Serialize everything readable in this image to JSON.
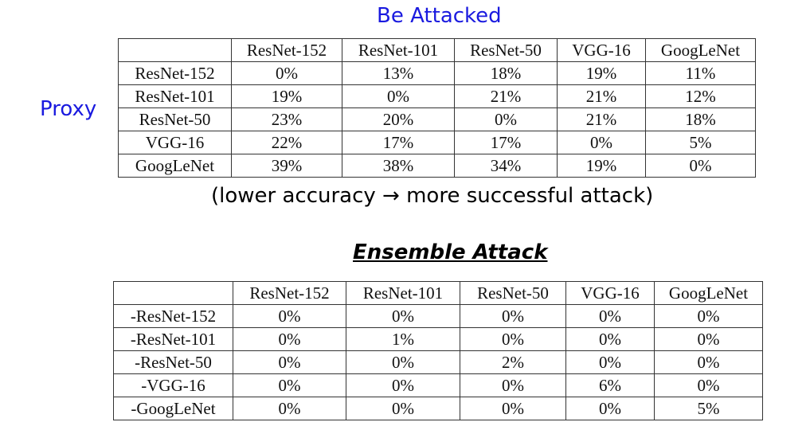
{
  "labels": {
    "be_attacked": "Be Attacked",
    "proxy": "Proxy",
    "note": "(lower accuracy → more successful attack)",
    "ensemble_title": "Ensemble Attack"
  },
  "colors": {
    "heading_blue": "#1a1adf"
  },
  "top_table": {
    "headers": [
      "",
      "ResNet-152",
      "ResNet-101",
      "ResNet-50",
      "VGG-16",
      "GoogLeNet"
    ],
    "rows": [
      [
        "ResNet-152",
        "0%",
        "13%",
        "18%",
        "19%",
        "11%"
      ],
      [
        "ResNet-101",
        "19%",
        "0%",
        "21%",
        "21%",
        "12%"
      ],
      [
        "ResNet-50",
        "23%",
        "20%",
        "0%",
        "21%",
        "18%"
      ],
      [
        "VGG-16",
        "22%",
        "17%",
        "17%",
        "0%",
        "5%"
      ],
      [
        "GoogLeNet",
        "39%",
        "38%",
        "34%",
        "19%",
        "0%"
      ]
    ]
  },
  "bottom_table": {
    "headers": [
      "",
      "ResNet-152",
      "ResNet-101",
      "ResNet-50",
      "VGG-16",
      "GoogLeNet"
    ],
    "rows": [
      [
        "-ResNet-152",
        "0%",
        "0%",
        "0%",
        "0%",
        "0%"
      ],
      [
        "-ResNet-101",
        "0%",
        "1%",
        "0%",
        "0%",
        "0%"
      ],
      [
        "-ResNet-50",
        "0%",
        "0%",
        "2%",
        "0%",
        "0%"
      ],
      [
        "-VGG-16",
        "0%",
        "0%",
        "0%",
        "6%",
        "0%"
      ],
      [
        "-GoogLeNet",
        "0%",
        "0%",
        "0%",
        "0%",
        "5%"
      ]
    ]
  }
}
